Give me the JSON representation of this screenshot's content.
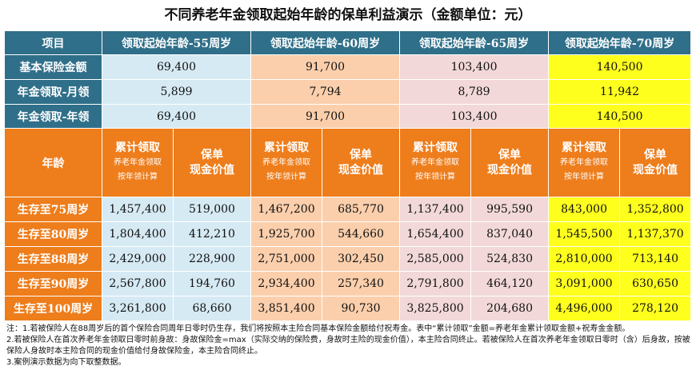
{
  "title": "不同养老年金领取起始年龄的保单利益演示（金额单位：元）",
  "header": {
    "item": "项目",
    "cols": [
      "领取起始年龄-55周岁",
      "领取起始年龄-60周岁",
      "领取起始年龄-65周岁",
      "领取起始年龄-70周岁"
    ]
  },
  "basic_rows": [
    {
      "label": "基本保险金额",
      "values": [
        "69,400",
        "91,700",
        "103,400",
        "140,500"
      ]
    },
    {
      "label": "年金领取-月领",
      "values": [
        "5,899",
        "7,794",
        "8,789",
        "11,942"
      ]
    },
    {
      "label": "年金领取-年领",
      "values": [
        "69,400",
        "91,700",
        "103,400",
        "140,500"
      ]
    }
  ],
  "sub_header": {
    "age": "年龄",
    "cum_title": "累计领取",
    "cum_sub1": "养老年金领取",
    "cum_sub2": "按年领计算",
    "cash_line1": "保单",
    "cash_line2": "现金价值"
  },
  "age_rows": [
    {
      "label": "生存至75周岁",
      "values": [
        "1,457,400",
        "519,000",
        "1,467,200",
        "685,770",
        "1,137,400",
        "995,590",
        "843,000",
        "1,352,800"
      ]
    },
    {
      "label": "生存至80周岁",
      "values": [
        "1,804,400",
        "412,210",
        "1,925,700",
        "544,660",
        "1,654,400",
        "837,040",
        "1,545,500",
        "1,137,370"
      ]
    },
    {
      "label": "生存至88周岁",
      "values": [
        "2,429,000",
        "228,900",
        "2,751,000",
        "302,450",
        "2,585,000",
        "524,830",
        "2,810,000",
        "713,140"
      ]
    },
    {
      "label": "生存至90周岁",
      "values": [
        "2,567,800",
        "194,760",
        "2,934,400",
        "257,340",
        "2,791,800",
        "464,120",
        "3,091,000",
        "630,650"
      ]
    },
    {
      "label": "生存至100周岁",
      "values": [
        "3,261,800",
        "68,660",
        "3,851,400",
        "90,730",
        "3,825,800",
        "204,680",
        "4,496,000",
        "278,120"
      ]
    }
  ],
  "notes": [
    "注：1.若被保险人在88周岁后的首个保险合同周年日零时仍生存，我们将按照本主险合同基本保险金额给付祝寿金。表中“累计领取”金额=养老年金累计领取金额+祝寿金金额。",
    "2.若被保险人在首次养老年金领取日零时前身故：身故保险金=max（实际交纳的保险费，身故时主险的现金价值），本主险合同终止。若被保险人在首次养老年金领取日零时（含）后身故，按被保险人身故时本主险合同的现金价值给付身故保险金，本主险合同终止。",
    "3.案例演示数据为向下取整数据。"
  ],
  "colors": {
    "header_teal": "#2f6f89",
    "orange": "#ee7d1b",
    "age55": "#d6eaf4",
    "age60": "#fbcfac",
    "age65": "#f2d8d8",
    "age70": "#ffff1e"
  }
}
